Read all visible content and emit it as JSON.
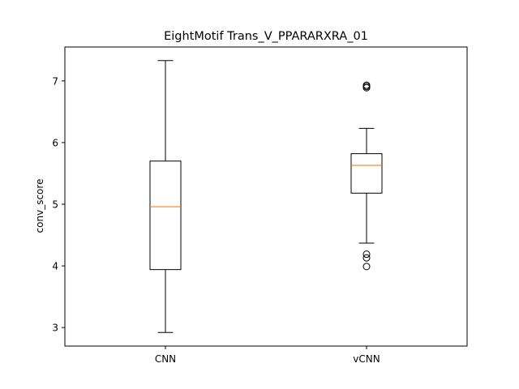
{
  "chart_data": {
    "type": "box",
    "title": "EightMotif Trans_V_PPARARXRA_01",
    "xlabel": "",
    "ylabel": "conv_score",
    "ylim": [
      2.7,
      7.55
    ],
    "yticks": [
      3,
      4,
      5,
      6,
      7
    ],
    "categories": [
      "CNN",
      "vCNN"
    ],
    "series": [
      {
        "category": "CNN",
        "whisker_low": 2.92,
        "q1": 3.94,
        "median": 4.96,
        "q3": 5.7,
        "whisker_high": 7.33,
        "outliers": []
      },
      {
        "category": "vCNN",
        "whisker_low": 4.37,
        "q1": 5.18,
        "median": 5.63,
        "q3": 5.82,
        "whisker_high": 6.23,
        "outliers": [
          6.89,
          6.91,
          6.93,
          4.13,
          4.19,
          3.99
        ]
      }
    ],
    "box_color": "#000000",
    "median_color": "#ff7f0e",
    "grid": false
  }
}
